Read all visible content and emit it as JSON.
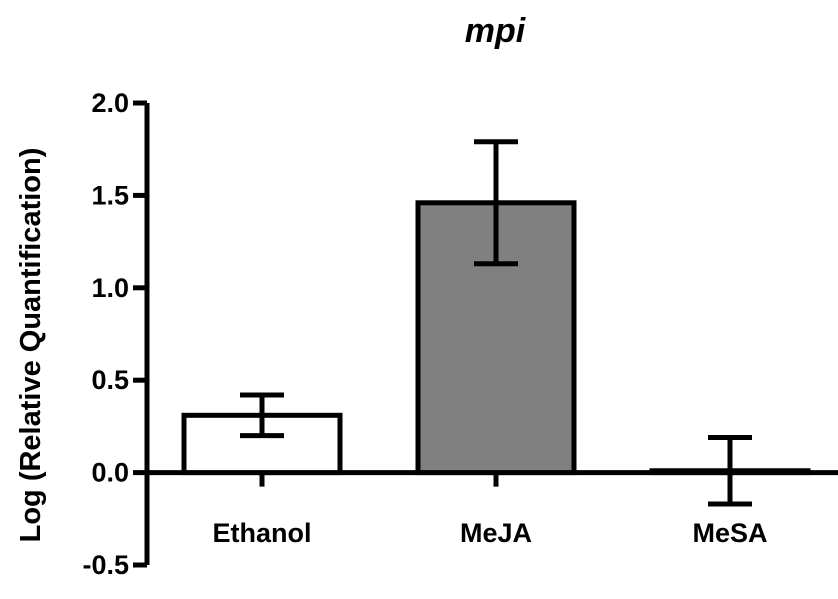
{
  "chart_data": {
    "type": "bar",
    "title": "mpi",
    "xlabel": "",
    "ylabel": "Log (Relative Quantification)",
    "categories": [
      "Ethanol",
      "MeJA",
      "MeSA"
    ],
    "values": [
      0.31,
      1.46,
      0.01
    ],
    "error_low": [
      0.2,
      1.13,
      -0.17
    ],
    "error_high": [
      0.42,
      1.79,
      0.19
    ],
    "bar_colors": [
      "#ffffff",
      "#808080",
      "#ffffff"
    ],
    "ylim": [
      -0.5,
      2.0
    ],
    "yticks": [
      -0.5,
      0.0,
      0.5,
      1.0,
      1.5,
      2.0
    ],
    "ytick_labels": [
      "-0.5",
      "0.0",
      "0.5",
      "1.0",
      "1.5",
      "2.0"
    ],
    "grid": false,
    "legend": "none"
  }
}
